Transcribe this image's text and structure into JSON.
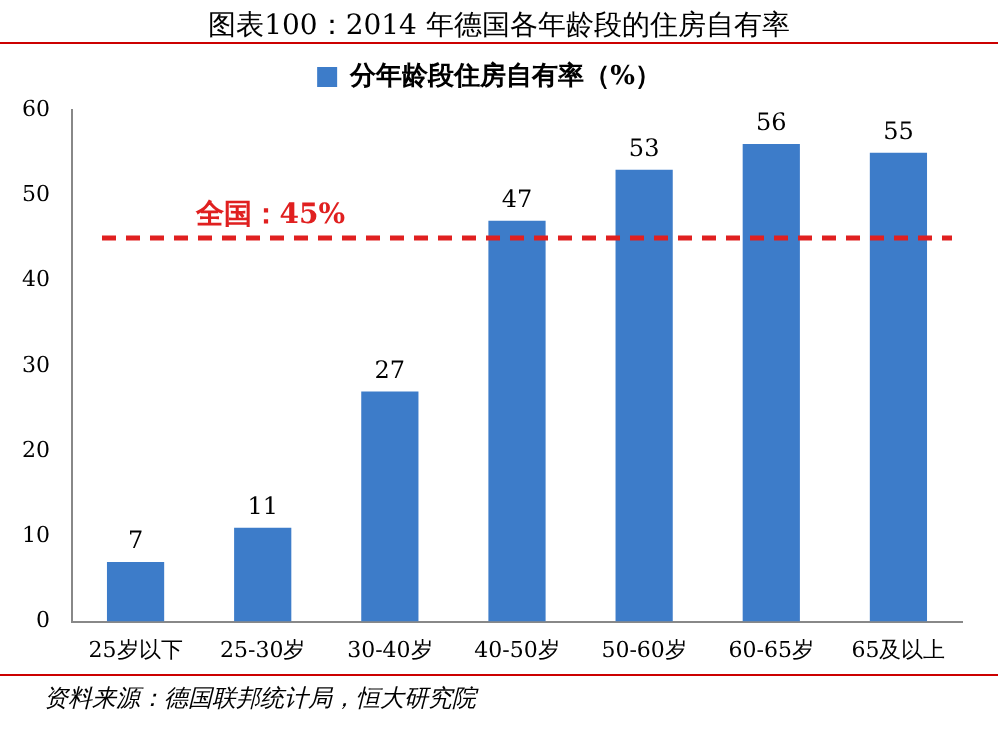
{
  "chart_data": {
    "type": "bar",
    "title": "图表100：2014 年德国各年龄段的住房自有率",
    "categories": [
      "25岁以下",
      "25-30岁",
      "30-40岁",
      "40-50岁",
      "50-60岁",
      "60-65岁",
      "65及以上"
    ],
    "series": [
      {
        "name": "分年龄段住房自有率（%）",
        "color": "#3d7cc9",
        "values": [
          7,
          11,
          27,
          47,
          53,
          56,
          55
        ]
      }
    ],
    "ylim": [
      0,
      60
    ],
    "yticks": [
      0,
      10,
      20,
      30,
      40,
      50,
      60
    ],
    "ref_lines": [
      {
        "axis": "y",
        "value": 45,
        "label": "全国：45%",
        "color": "#e02020",
        "line_style": "dashed"
      }
    ],
    "annotations": [
      "资料来源：德国联邦统计局，恒大研究院"
    ],
    "data_labels": true,
    "grid": false,
    "legend": "top"
  }
}
